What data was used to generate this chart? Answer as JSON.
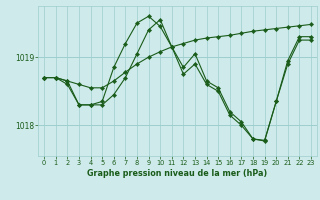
{
  "title": "Graphe pression niveau de la mer (hPa)",
  "background_color": "#ceeaea",
  "grid_color_major": "#9ecece",
  "grid_color_minor": "#b8dede",
  "line_color": "#1a5c1a",
  "marker_color": "#1a5c1a",
  "ylim": [
    1017.55,
    1019.75
  ],
  "yticks": [
    1018,
    1019
  ],
  "xlim": [
    -0.5,
    23.5
  ],
  "xticks": [
    0,
    1,
    2,
    3,
    4,
    5,
    6,
    7,
    8,
    9,
    10,
    11,
    12,
    13,
    14,
    15,
    16,
    17,
    18,
    19,
    20,
    21,
    22,
    23
  ],
  "series": [
    [
      1018.7,
      1018.7,
      1018.65,
      1018.3,
      1018.3,
      1018.35,
      1018.85,
      1019.2,
      1019.5,
      1019.6,
      1019.45,
      1019.15,
      1018.85,
      1019.05,
      1018.65,
      1018.55,
      1018.2,
      1018.05,
      1017.8,
      1017.78,
      1018.35,
      1018.95,
      1019.3,
      1019.3
    ],
    [
      1018.7,
      1018.7,
      1018.65,
      1018.6,
      1018.55,
      1018.55,
      1018.65,
      1018.78,
      1018.9,
      1019.0,
      1019.08,
      1019.15,
      1019.2,
      1019.25,
      1019.28,
      1019.3,
      1019.32,
      1019.35,
      1019.38,
      1019.4,
      1019.42,
      1019.44,
      1019.46,
      1019.48
    ],
    [
      1018.7,
      1018.7,
      1018.6,
      1018.3,
      1018.3,
      1018.3,
      1018.45,
      1018.7,
      1019.05,
      1019.4,
      1019.55,
      1019.15,
      1018.75,
      1018.9,
      1018.6,
      1018.5,
      1018.15,
      1018.0,
      1017.8,
      1017.77,
      1018.35,
      1018.9,
      1019.25,
      1019.25
    ]
  ]
}
